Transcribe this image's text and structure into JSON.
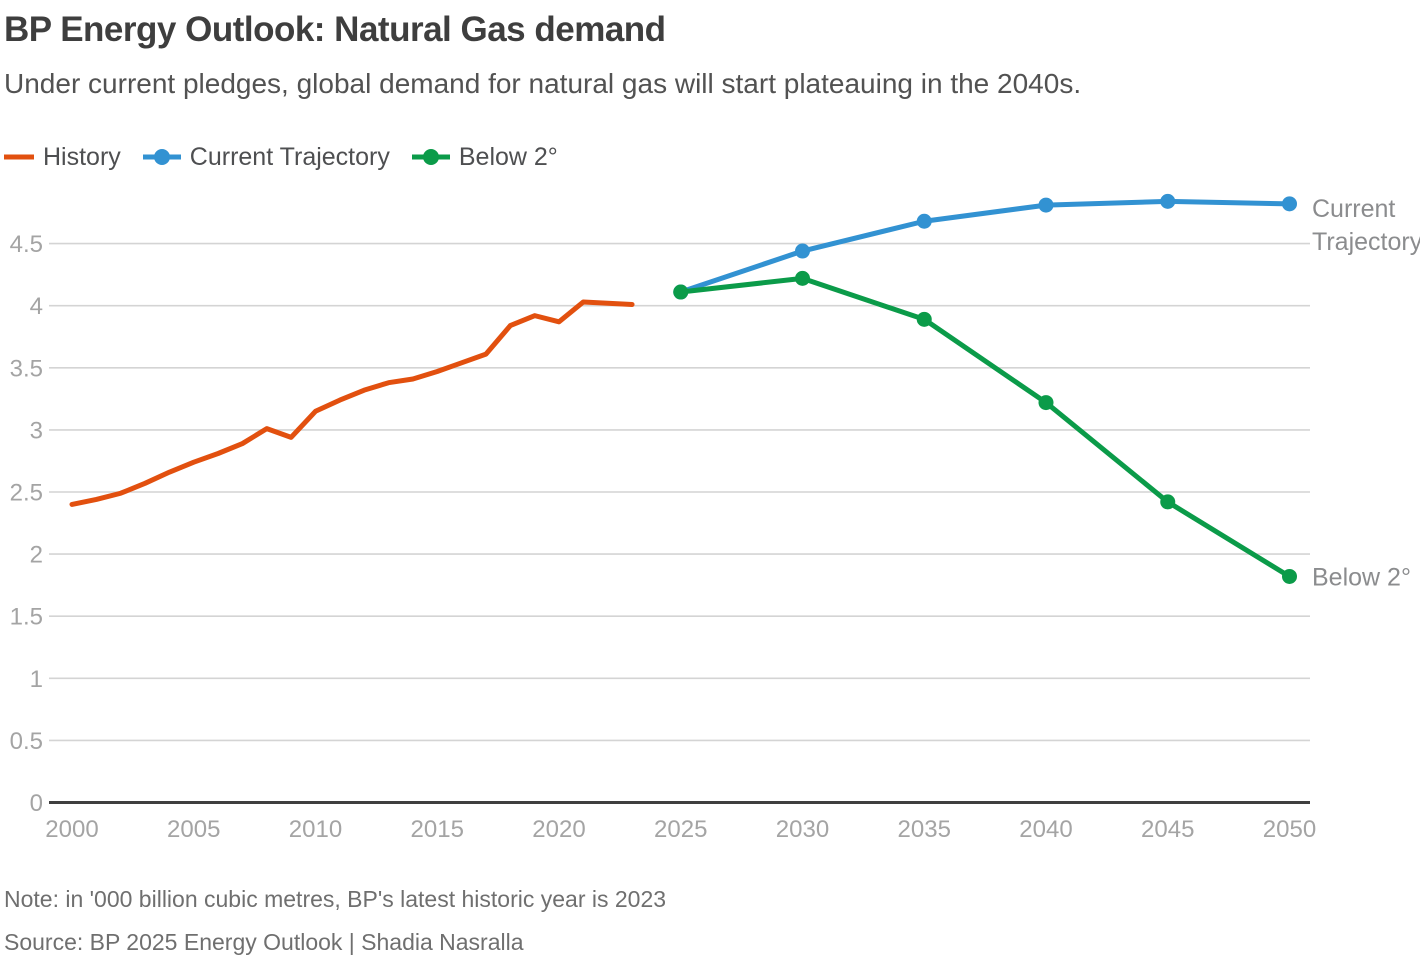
{
  "chart_data": {
    "type": "line",
    "title": "BP Energy Outlook: Natural Gas demand",
    "subtitle": "Under current pledges, global demand for natural gas will start plateauing in the 2040s.",
    "note": "Note: in '000 billion cubic metres, BP's latest historic year is 2023",
    "source": "Source: BP 2025 Energy Outlook | Shadia Nasralla",
    "xlabel": "",
    "ylabel": "",
    "xlim": [
      2000,
      2050
    ],
    "ylim": [
      0,
      4.5
    ],
    "grid": true,
    "legend_position": "top-left",
    "yticks": [
      0,
      0.5,
      1,
      1.5,
      2,
      2.5,
      3,
      3.5,
      4,
      4.5
    ],
    "xticks": [
      2000,
      2005,
      2010,
      2015,
      2020,
      2025,
      2030,
      2035,
      2040,
      2045,
      2050
    ],
    "series": [
      {
        "name": "History",
        "color": "#E2500F",
        "markers": false,
        "x": [
          2000,
          2001,
          2002,
          2003,
          2004,
          2005,
          2006,
          2007,
          2008,
          2009,
          2010,
          2011,
          2012,
          2013,
          2014,
          2015,
          2016,
          2017,
          2018,
          2019,
          2020,
          2021,
          2022,
          2023
        ],
        "values": [
          2.4,
          2.44,
          2.49,
          2.57,
          2.66,
          2.74,
          2.81,
          2.89,
          3.01,
          2.94,
          3.15,
          3.24,
          3.32,
          3.38,
          3.41,
          3.47,
          3.54,
          3.61,
          3.84,
          3.92,
          3.87,
          4.03,
          4.02,
          4.01
        ]
      },
      {
        "name": "Current Trajectory",
        "color": "#3292D2",
        "markers": true,
        "x": [
          2025,
          2030,
          2035,
          2040,
          2045,
          2050
        ],
        "values": [
          4.11,
          4.44,
          4.68,
          4.81,
          4.84,
          4.82
        ],
        "end_label": [
          "Current",
          "Trajectory"
        ]
      },
      {
        "name": "Below 2°",
        "color": "#0B9B49",
        "markers": true,
        "x": [
          2025,
          2030,
          2035,
          2040,
          2045,
          2050
        ],
        "values": [
          4.11,
          4.22,
          3.89,
          3.22,
          2.42,
          1.82
        ],
        "end_label": [
          "Below 2°"
        ]
      }
    ]
  }
}
